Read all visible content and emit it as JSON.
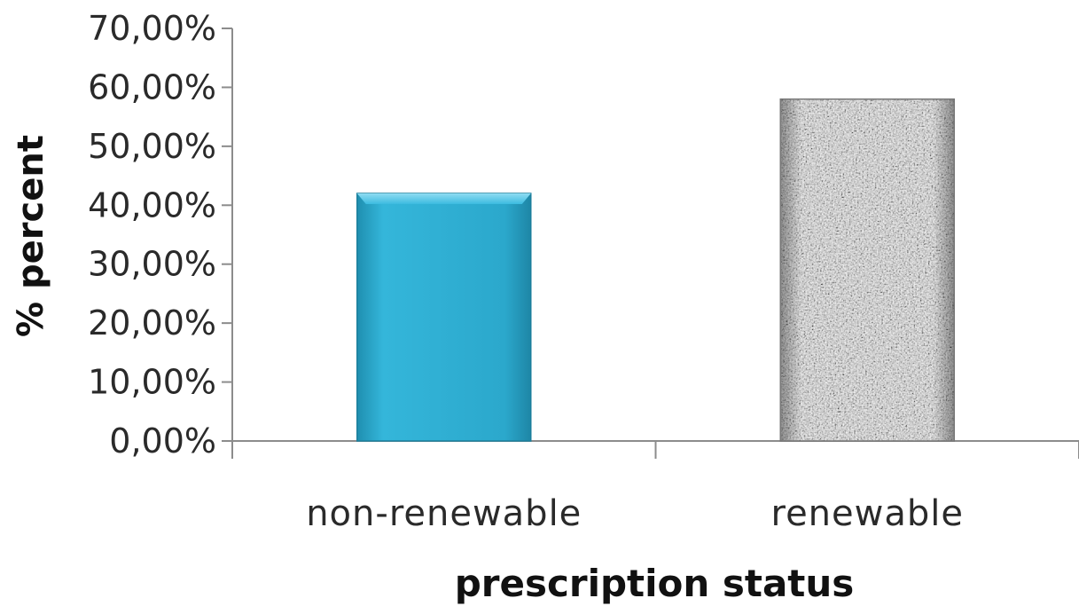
{
  "chart_data": {
    "type": "bar",
    "title": "",
    "xlabel": "prescription status",
    "ylabel": "% percent",
    "categories": [
      "non-renewable",
      "renewable"
    ],
    "values": [
      42.0,
      58.0
    ],
    "ylim": [
      0,
      70
    ],
    "yticks": [
      0,
      10,
      20,
      30,
      40,
      50,
      60,
      70
    ],
    "ytick_labels": [
      "0,00%",
      "10,00%",
      "20,00%",
      "30,00%",
      "40,00%",
      "50,00%",
      "60,00%",
      "70,00%"
    ],
    "grid": false,
    "legend": "none",
    "bar_styles": [
      "solid-teal",
      "gray-speckled"
    ],
    "colors": [
      "#2ba8cc",
      "#9a9a9a"
    ]
  }
}
